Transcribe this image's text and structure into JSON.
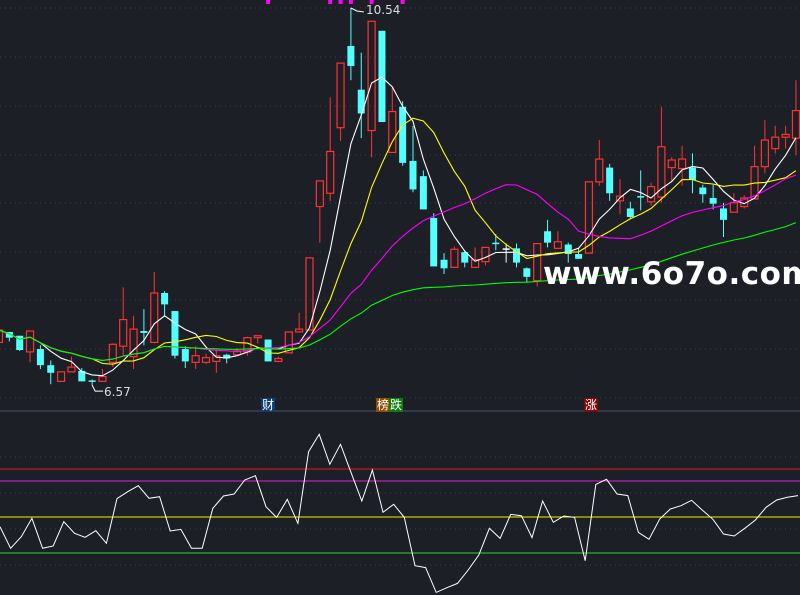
{
  "chart_data": [
    {
      "type": "candlestick",
      "colors": {
        "up": "#ff3232",
        "down": "#54ffff",
        "flat": "#ffffff",
        "background": "#1c1f26"
      },
      "candles": [
        [
          7.02,
          7.15,
          7.02,
          7.15
        ],
        [
          7.13,
          7.13,
          7.03,
          7.07
        ],
        [
          7.09,
          7.09,
          6.93,
          6.94
        ],
        [
          6.92,
          7.14,
          6.81,
          7.14
        ],
        [
          6.95,
          6.99,
          6.74,
          6.78
        ],
        [
          6.78,
          6.83,
          6.58,
          6.7
        ],
        [
          6.61,
          6.71,
          6.61,
          6.71
        ],
        [
          6.71,
          6.87,
          6.71,
          6.76
        ],
        [
          6.72,
          6.75,
          6.61,
          6.61
        ],
        [
          6.62,
          6.63,
          6.57,
          6.61
        ],
        [
          6.61,
          6.74,
          6.61,
          6.66
        ],
        [
          6.81,
          7.01,
          6.76,
          7.0
        ],
        [
          6.98,
          7.6,
          6.88,
          7.26
        ],
        [
          6.87,
          7.3,
          6.74,
          7.16
        ],
        [
          7.14,
          7.37,
          6.99,
          7.12
        ],
        [
          7.02,
          7.76,
          7.01,
          7.54
        ],
        [
          7.54,
          7.56,
          7.29,
          7.42
        ],
        [
          7.35,
          7.35,
          6.85,
          6.88
        ],
        [
          6.95,
          6.98,
          6.75,
          6.82
        ],
        [
          6.81,
          6.98,
          6.74,
          6.88
        ],
        [
          6.81,
          6.9,
          6.79,
          6.86
        ],
        [
          6.82,
          6.95,
          6.7,
          6.88
        ],
        [
          6.89,
          6.9,
          6.8,
          6.85
        ],
        [
          6.89,
          6.96,
          6.89,
          6.93
        ],
        [
          6.92,
          7.08,
          6.88,
          7.07
        ],
        [
          7.07,
          7.1,
          7.01,
          7.09
        ],
        [
          7.05,
          7.05,
          6.82,
          6.82
        ],
        [
          6.82,
          6.87,
          6.82,
          6.85
        ],
        [
          6.91,
          7.13,
          6.91,
          7.13
        ],
        [
          7.13,
          7.33,
          7.13,
          7.16
        ],
        [
          7.15,
          7.91,
          7.15,
          7.91
        ],
        [
          8.45,
          8.72,
          8.07,
          8.72
        ],
        [
          8.59,
          9.6,
          8.51,
          9.03
        ],
        [
          9.28,
          9.96,
          9.14,
          9.96
        ],
        [
          10.14,
          10.54,
          9.78,
          9.93
        ],
        [
          9.68,
          10.07,
          9.17,
          9.43
        ],
        [
          9.25,
          10.4,
          8.97,
          10.4
        ],
        [
          10.3,
          10.3,
          9.34,
          9.34
        ],
        [
          9.02,
          9.7,
          9.02,
          9.45
        ],
        [
          9.5,
          9.56,
          8.88,
          8.91
        ],
        [
          8.93,
          9.3,
          8.6,
          8.63
        ],
        [
          8.77,
          8.83,
          8.42,
          8.42
        ],
        [
          8.33,
          8.38,
          7.82,
          7.82
        ],
        [
          7.89,
          7.96,
          7.74,
          7.8
        ],
        [
          7.81,
          8.03,
          7.81,
          8.0
        ],
        [
          7.97,
          7.99,
          7.81,
          7.86
        ],
        [
          7.81,
          8.02,
          7.81,
          7.89
        ],
        [
          7.87,
          8.02,
          7.83,
          8.02
        ],
        [
          8.07,
          8.16,
          7.99,
          8.06
        ],
        [
          8.01,
          8.06,
          7.86,
          8.01
        ],
        [
          8.01,
          8.06,
          7.81,
          7.86
        ],
        [
          7.8,
          7.81,
          7.65,
          7.71
        ],
        [
          7.67,
          8.06,
          7.61,
          8.06
        ],
        [
          8.19,
          8.31,
          8.02,
          8.07
        ],
        [
          8.01,
          8.19,
          8.01,
          8.08
        ],
        [
          8.05,
          8.07,
          7.86,
          7.95
        ],
        [
          7.95,
          8.01,
          7.9,
          7.9
        ],
        [
          7.96,
          8.71,
          7.96,
          8.71
        ],
        [
          8.71,
          9.15,
          8.67,
          8.95
        ],
        [
          8.86,
          8.9,
          8.51,
          8.59
        ],
        [
          8.51,
          8.74,
          8.37,
          8.56
        ],
        [
          8.43,
          8.5,
          8.32,
          8.34
        ],
        [
          8.56,
          8.83,
          8.41,
          8.55
        ],
        [
          8.5,
          8.7,
          8.46,
          8.66
        ],
        [
          8.55,
          9.5,
          8.49,
          9.08
        ],
        [
          8.86,
          8.97,
          8.72,
          8.94
        ],
        [
          8.85,
          9.09,
          8.67,
          8.95
        ],
        [
          8.86,
          9.01,
          8.59,
          8.73
        ],
        [
          8.65,
          8.68,
          8.49,
          8.58
        ],
        [
          8.54,
          8.68,
          8.42,
          8.48
        ],
        [
          8.43,
          8.49,
          8.13,
          8.31
        ],
        [
          8.39,
          8.59,
          8.39,
          8.49
        ],
        [
          8.45,
          8.57,
          8.43,
          8.54
        ],
        [
          8.53,
          9.09,
          8.53,
          8.87
        ],
        [
          8.87,
          9.36,
          8.8,
          9.15
        ],
        [
          9.06,
          9.3,
          9.01,
          9.18
        ],
        [
          9.18,
          9.3,
          9.06,
          9.21
        ],
        [
          9.17,
          9.78,
          8.99,
          9.46
        ]
      ],
      "moving_averages": [
        {
          "period": 5,
          "color": "#ffffff"
        },
        {
          "period": 10,
          "color": "#ffff00"
        },
        {
          "period": 20,
          "color": "#ff00ff"
        },
        {
          "period": 60,
          "color": "#00ff00"
        }
      ],
      "annotations": {
        "high_label": "10.54",
        "low_label": "6.57",
        "signal_marker_color": "#ff00ff",
        "signal_markers": [
          26,
          32,
          33,
          34,
          36,
          39
        ]
      }
    },
    {
      "type": "line",
      "line_color": "#ffffff",
      "values": [
        41.9,
        23.9,
        33.6,
        48.9,
        23.9,
        25.8,
        46.1,
        36.4,
        33.1,
        38.6,
        28.1,
        65.3,
        71.1,
        76.1,
        65.6,
        66.9,
        38.3,
        39.7,
        23.9,
        23.9,
        57.2,
        67.5,
        69.2,
        80.8,
        84.4,
        58.6,
        49.7,
        64.7,
        44.7,
        104.4,
        118.9,
        93.9,
        110.6,
        86.9,
        63.3,
        89.2,
        53.9,
        60.6,
        49.7,
        9.4,
        7.8,
        -12.8,
        -8.9,
        -5.3,
        5.8,
        18.3,
        40.6,
        32.2,
        52.2,
        51.1,
        32.8,
        63.3,
        45.6,
        50.8,
        49.7,
        13.6,
        77.2,
        81.4,
        69.2,
        67.8,
        37.2,
        31.4,
        48.3,
        56.7,
        59.4,
        63.9,
        55.8,
        48.1,
        35.8,
        34.2,
        40.6,
        47.5,
        58.1,
        64.2,
        66.4,
        67.8
      ],
      "reference_lines": [
        {
          "value": 90,
          "color": "#e01818"
        },
        {
          "value": 80,
          "color": "#e020e0"
        },
        {
          "value": 50,
          "color": "#f0f000"
        },
        {
          "value": 20,
          "color": "#20e020"
        }
      ]
    }
  ],
  "event_tags": [
    {
      "text": "财",
      "bg": "#0d3d73"
    },
    {
      "text": "榜",
      "bg": "#8a4f00"
    },
    {
      "text": "跌",
      "bg": "#0b7d0b"
    },
    {
      "text": "涨",
      "bg": "#7d0a0a"
    }
  ],
  "watermark": "www.6o7o.com"
}
